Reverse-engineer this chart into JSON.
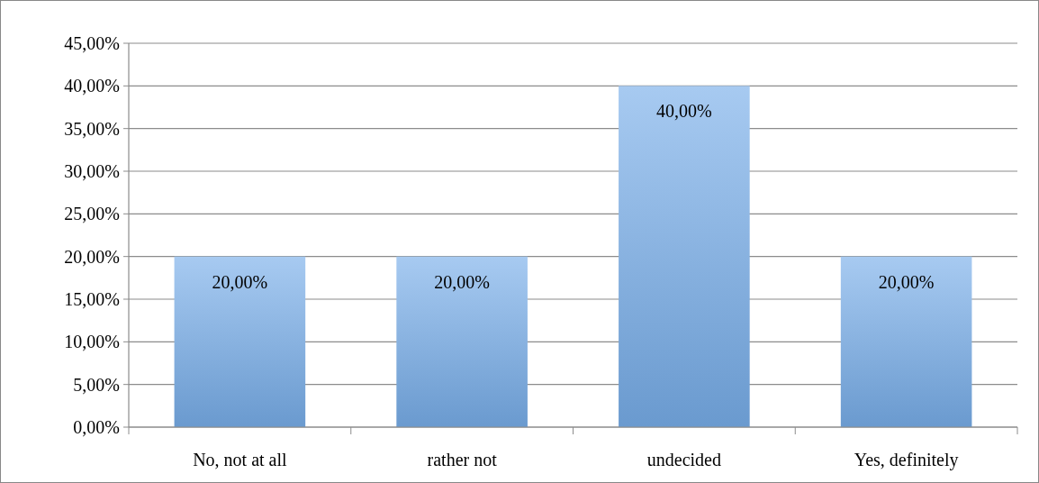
{
  "chart_data": {
    "type": "bar",
    "categories": [
      "No, not at all",
      "rather not",
      "undecided",
      "Yes, definitely"
    ],
    "values": [
      20,
      20,
      40,
      20
    ],
    "value_labels": [
      "20,00%",
      "20,00%",
      "40,00%",
      "20,00%"
    ],
    "color": "#78aeea",
    "ylim": [
      0,
      45
    ],
    "yticks": [
      {
        "value": 0,
        "label": "0,00%"
      },
      {
        "value": 5,
        "label": "5,00%"
      },
      {
        "value": 10,
        "label": "10,00%"
      },
      {
        "value": 15,
        "label": "15,00%"
      },
      {
        "value": 20,
        "label": "20,00%"
      },
      {
        "value": 25,
        "label": "25,00%"
      },
      {
        "value": 30,
        "label": "30,00%"
      },
      {
        "value": 35,
        "label": "35,00%"
      },
      {
        "value": 40,
        "label": "40,00%"
      },
      {
        "value": 45,
        "label": "45,00%"
      }
    ],
    "grid": "y"
  }
}
